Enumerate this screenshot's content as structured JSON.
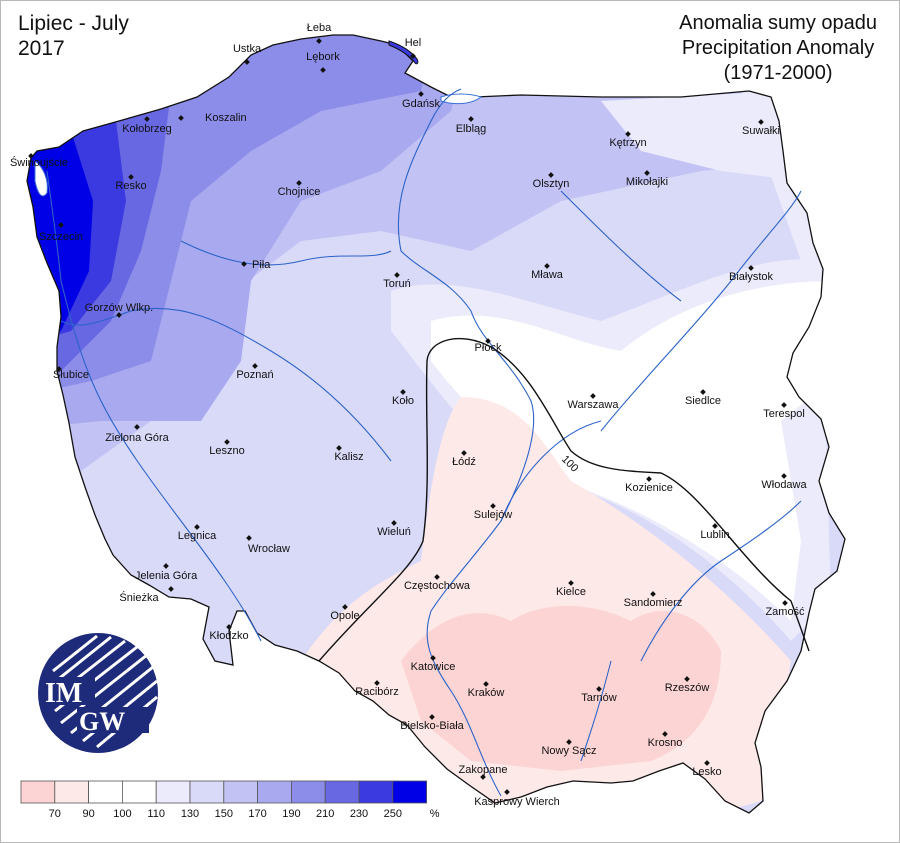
{
  "period": {
    "line1": "Lipiec - July",
    "line2": "2017"
  },
  "title": {
    "line1": "Anomalia sumy opadu",
    "line2": "Precipitation Anomaly",
    "line3": "(1971-2000)"
  },
  "logo": {
    "text_top": "IM",
    "text_bottom": "GW"
  },
  "isoline_label": "100",
  "legend": {
    "colors": [
      "#fcd4d4",
      "#fee9e9",
      "#ffffff",
      "#ffffff",
      "#ebebfb",
      "#d9d9f8",
      "#c2c2f4",
      "#a9a9ef",
      "#8c8ce9",
      "#6868e3",
      "#3a3ae0",
      "#0000e6"
    ],
    "ticks": [
      "70",
      "90",
      "100",
      "110",
      "130",
      "150",
      "170",
      "190",
      "210",
      "230",
      "250"
    ],
    "unit": "%"
  },
  "cities": [
    {
      "name": "Hel"
    },
    {
      "name": "Łeba"
    },
    {
      "name": "Ustka"
    },
    {
      "name": "Lębork"
    },
    {
      "name": "Gdańsk"
    },
    {
      "name": "Elbląg"
    },
    {
      "name": "Kołobrzeg"
    },
    {
      "name": "Koszalin"
    },
    {
      "name": "Świnoujście"
    },
    {
      "name": "Resko"
    },
    {
      "name": "Chojnice"
    },
    {
      "name": "Szczecin"
    },
    {
      "name": "Kętrzyn"
    },
    {
      "name": "Suwałki"
    },
    {
      "name": "Olsztyn"
    },
    {
      "name": "Mikołajki"
    },
    {
      "name": "Piła"
    },
    {
      "name": "Toruń"
    },
    {
      "name": "Mława"
    },
    {
      "name": "Białystok"
    },
    {
      "name": "Gorzów Wlkp."
    },
    {
      "name": "Płock"
    },
    {
      "name": "Słubice"
    },
    {
      "name": "Poznań"
    },
    {
      "name": "Koło"
    },
    {
      "name": "Warszawa"
    },
    {
      "name": "Siedlce"
    },
    {
      "name": "Terespol"
    },
    {
      "name": "Zielona Góra"
    },
    {
      "name": "Leszno"
    },
    {
      "name": "Łódź"
    },
    {
      "name": "Kalisz"
    },
    {
      "name": "Kozienice"
    },
    {
      "name": "Włodawa"
    },
    {
      "name": "Sulejów"
    },
    {
      "name": "Lublin"
    },
    {
      "name": "Legnica"
    },
    {
      "name": "Wieluń"
    },
    {
      "name": "Wrocław"
    },
    {
      "name": "Jelenia Góra"
    },
    {
      "name": "Częstochowa"
    },
    {
      "name": "Kielce"
    },
    {
      "name": "Śnieżka"
    },
    {
      "name": "Sandomierz"
    },
    {
      "name": "Opole"
    },
    {
      "name": "Zamość"
    },
    {
      "name": "Kłodzko"
    },
    {
      "name": "Katowice"
    },
    {
      "name": "Racibórz"
    },
    {
      "name": "Kraków"
    },
    {
      "name": "Tarnów"
    },
    {
      "name": "Rzeszów"
    },
    {
      "name": "Bielsko-Biała"
    },
    {
      "name": "Nowy Sącz"
    },
    {
      "name": "Krosno"
    },
    {
      "name": "Lesko"
    },
    {
      "name": "Zakopane"
    },
    {
      "name": "Kasprowy Wierch"
    }
  ]
}
